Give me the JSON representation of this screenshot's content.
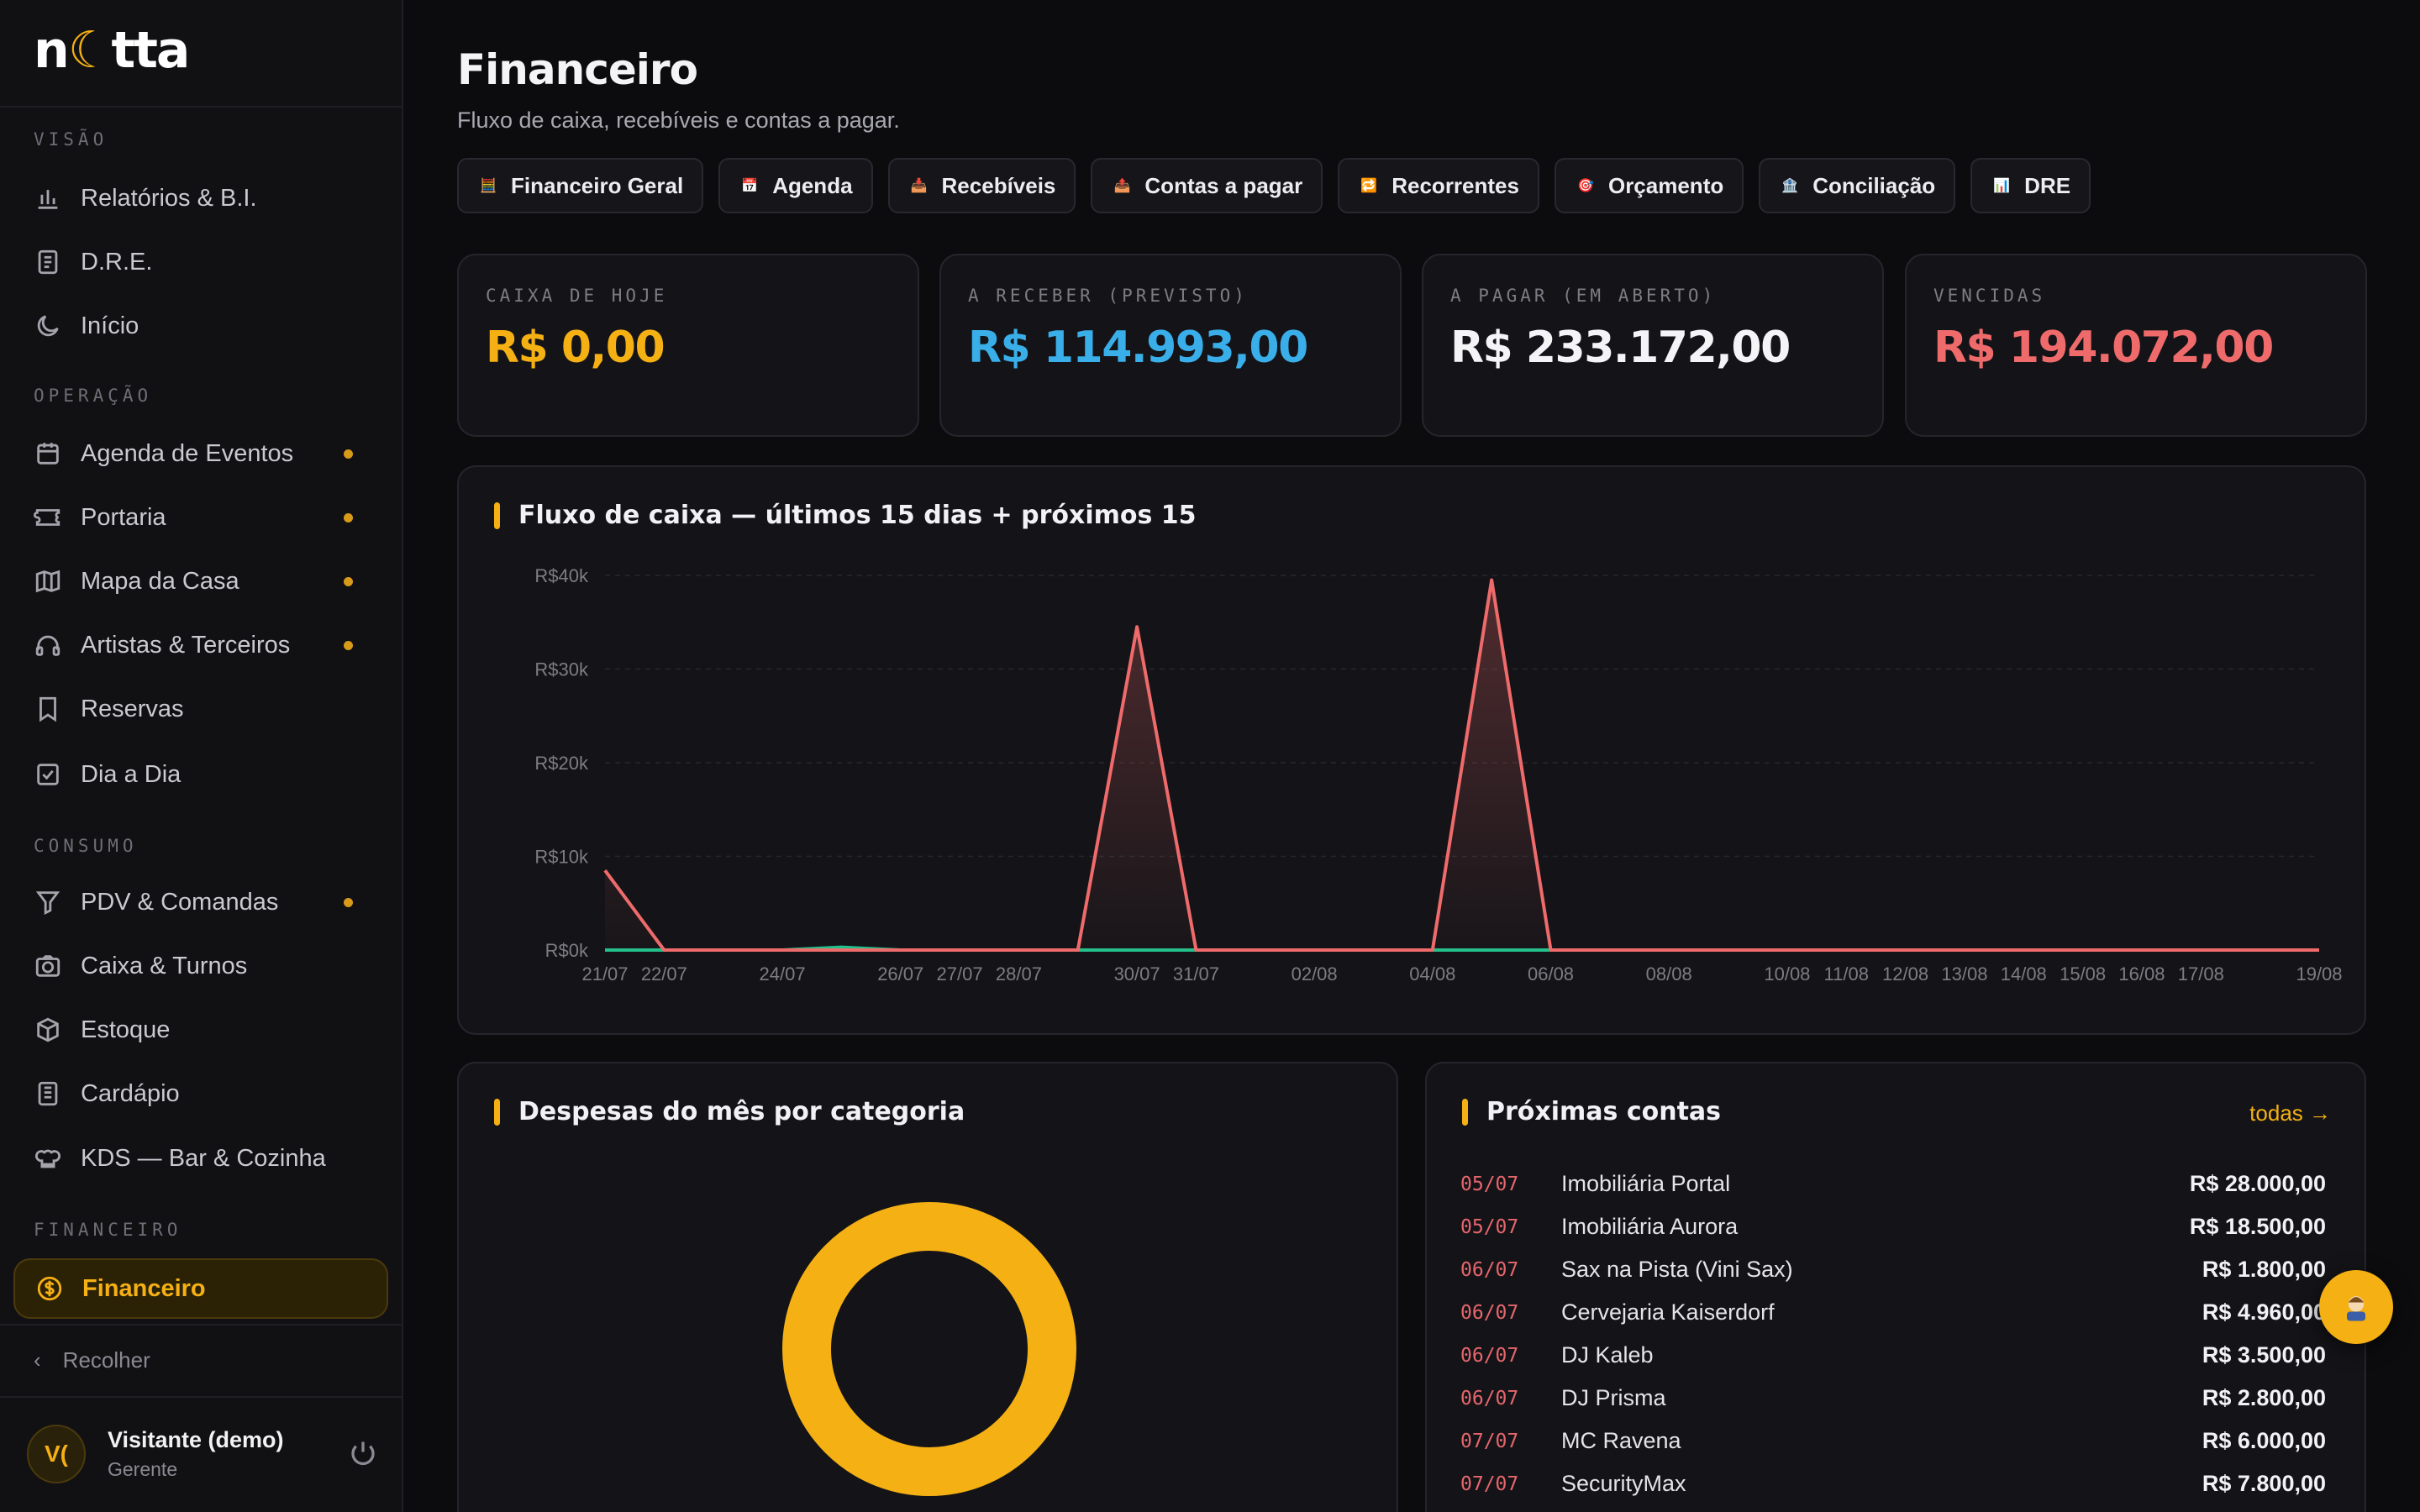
{
  "app": {
    "logo_text_a": "n",
    "logo_text_moon": "☾",
    "logo_text_b": "tta"
  },
  "sidebar": {
    "sections": [
      {
        "label": "VISÃO"
      },
      {
        "label": "OPERAÇÃO"
      },
      {
        "label": "CONSUMO"
      },
      {
        "label": "FINANCEIRO"
      }
    ],
    "items": [
      {
        "label": "Relatórios & B.I.",
        "icon": "bar-chart-icon",
        "dot": false
      },
      {
        "label": "D.R.E.",
        "icon": "document-icon",
        "dot": false
      },
      {
        "label": "Início",
        "icon": "moon-icon",
        "dot": false
      },
      {
        "label": "Agenda de Eventos",
        "icon": "calendar-icon",
        "dot": true
      },
      {
        "label": "Portaria",
        "icon": "ticket-icon",
        "dot": true
      },
      {
        "label": "Mapa da Casa",
        "icon": "map-icon",
        "dot": true
      },
      {
        "label": "Artistas & Terceiros",
        "icon": "headphones-icon",
        "dot": true
      },
      {
        "label": "Reservas",
        "icon": "bookmark-icon",
        "dot": false
      },
      {
        "label": "Dia a Dia",
        "icon": "checkbox-icon",
        "dot": false
      },
      {
        "label": "PDV & Comandas",
        "icon": "filter-icon",
        "dot": true
      },
      {
        "label": "Caixa & Turnos",
        "icon": "camera-icon",
        "dot": false
      },
      {
        "label": "Estoque",
        "icon": "box-icon",
        "dot": false
      },
      {
        "label": "Cardápio",
        "icon": "menu-book-icon",
        "dot": false
      },
      {
        "label": "KDS — Bar & Cozinha",
        "icon": "chef-hat-icon",
        "dot": false
      },
      {
        "label": "Financeiro",
        "icon": "dollar-icon",
        "dot": false,
        "active": true
      }
    ],
    "collapse_label": "Recolher",
    "user": {
      "initials": "V(",
      "name": "Visitante (demo)",
      "role": "Gerente"
    }
  },
  "header": {
    "title": "Financeiro",
    "subtitle": "Fluxo de caixa, recebíveis e contas a pagar."
  },
  "tabs": [
    {
      "label": "Financeiro Geral",
      "emoji": "🧮"
    },
    {
      "label": "Agenda",
      "emoji": "📅"
    },
    {
      "label": "Recebíveis",
      "emoji": "📥"
    },
    {
      "label": "Contas a pagar",
      "emoji": "📤"
    },
    {
      "label": "Recorrentes",
      "emoji": "🔁"
    },
    {
      "label": "Orçamento",
      "emoji": "🎯"
    },
    {
      "label": "Conciliação",
      "emoji": "🏦"
    },
    {
      "label": "DRE",
      "emoji": "📊"
    }
  ],
  "kpis": [
    {
      "label": "CAIXA DE HOJE",
      "value": "R$ 0,00",
      "color": "#f5b014"
    },
    {
      "label": "A RECEBER (PREVISTO)",
      "value": "R$ 114.993,00",
      "color": "#3aaee8"
    },
    {
      "label": "A PAGAR (EM ABERTO)",
      "value": "R$ 233.172,00",
      "color": "#f4f4f6"
    },
    {
      "label": "VENCIDAS",
      "value": "R$ 194.072,00",
      "color": "#ef6b6b"
    }
  ],
  "cashflow": {
    "title": "Fluxo de caixa — últimos 15 dias + próximos 15"
  },
  "chart_data": {
    "type": "line",
    "title": "Fluxo de caixa — últimos 15 dias + próximos 15",
    "y_tick_labels": [
      "R$0k",
      "R$10k",
      "R$20k",
      "R$30k",
      "R$40k"
    ],
    "y_ticks": [
      0,
      10000,
      20000,
      30000,
      40000
    ],
    "ylim": [
      0,
      40000
    ],
    "x_tick_labels": [
      "21/07",
      "22/07",
      "24/07",
      "26/07",
      "27/07",
      "28/07",
      "30/07",
      "31/07",
      "02/08",
      "04/08",
      "06/08",
      "08/08",
      "10/08",
      "11/08",
      "12/08",
      "13/08",
      "14/08",
      "15/08",
      "16/08",
      "17/08",
      "19/08"
    ],
    "x_tick_index": [
      0,
      1,
      3,
      5,
      6,
      7,
      9,
      10,
      12,
      14,
      16,
      18,
      20,
      21,
      22,
      23,
      24,
      25,
      26,
      27,
      29
    ],
    "x": [
      "21/07",
      "22/07",
      "23/07",
      "24/07",
      "25/07",
      "26/07",
      "27/07",
      "28/07",
      "29/07",
      "30/07",
      "31/07",
      "01/08",
      "02/08",
      "03/08",
      "04/08",
      "05/08",
      "06/08",
      "07/08",
      "08/08",
      "09/08",
      "10/08",
      "11/08",
      "12/08",
      "13/08",
      "14/08",
      "15/08",
      "16/08",
      "17/08",
      "18/08",
      "19/08"
    ],
    "series": [
      {
        "color": "#ef6b6b",
        "values": [
          8500,
          0,
          0,
          0,
          0,
          0,
          0,
          0,
          0,
          34500,
          0,
          0,
          0,
          0,
          0,
          39500,
          0,
          0,
          0,
          0,
          0,
          0,
          0,
          0,
          0,
          0,
          0,
          0,
          0,
          0
        ]
      },
      {
        "color": "#22c08a",
        "values": [
          0,
          0,
          0,
          0,
          300,
          0,
          0,
          0,
          0,
          0,
          0,
          0,
          0,
          0,
          0,
          0,
          0,
          0,
          0,
          0,
          0,
          0,
          0,
          0,
          0,
          0,
          0,
          0,
          0,
          0
        ]
      }
    ],
    "grid": true
  },
  "expenses": {
    "title": "Despesas do mês por categoria"
  },
  "expenses_chart": {
    "type": "pie",
    "slices": [
      {
        "value": 100,
        "color": "#f5b014"
      }
    ]
  },
  "bills": {
    "title": "Próximas contas",
    "see_all": "todas →",
    "items": [
      {
        "date": "05/07",
        "name": "Imobiliária Portal",
        "amount": "R$ 28.000,00"
      },
      {
        "date": "05/07",
        "name": "Imobiliária Aurora",
        "amount": "R$ 18.500,00"
      },
      {
        "date": "06/07",
        "name": "Sax na Pista (Vini Sax)",
        "amount": "R$ 1.800,00"
      },
      {
        "date": "06/07",
        "name": "Cervejaria Kaiserdorf",
        "amount": "R$ 4.960,00"
      },
      {
        "date": "06/07",
        "name": "DJ Kaleb",
        "amount": "R$ 3.500,00"
      },
      {
        "date": "06/07",
        "name": "DJ Prisma",
        "amount": "R$ 2.800,00"
      },
      {
        "date": "07/07",
        "name": "MC Ravena",
        "amount": "R$ 6.000,00"
      },
      {
        "date": "07/07",
        "name": "SecurityMax",
        "amount": "R$ 7.800,00"
      }
    ]
  }
}
